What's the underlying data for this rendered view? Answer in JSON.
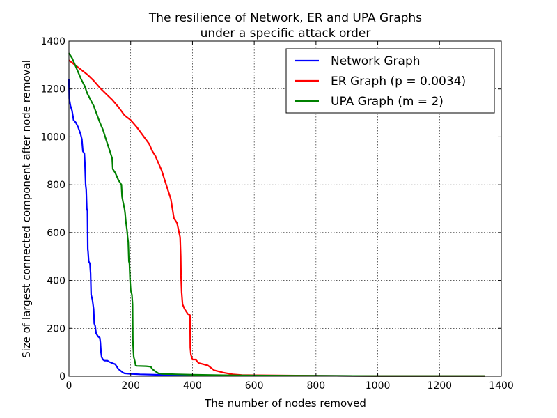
{
  "chart_data": {
    "type": "line",
    "title": "The resilience of Network, ER and UPA Graphs",
    "subtitle": "under a specific attack order",
    "xlabel": "The number of nodes removed",
    "ylabel": "Size of largest connected component after node removal",
    "xlim": [
      0,
      1400
    ],
    "ylim": [
      0,
      1400
    ],
    "x_ticks": [
      "0",
      "200",
      "400",
      "600",
      "800",
      "1000",
      "1200",
      "1400"
    ],
    "y_ticks": [
      "0",
      "200",
      "400",
      "600",
      "800",
      "1000",
      "1200",
      "1400"
    ],
    "grid": true,
    "legend_position": "top-right",
    "series": [
      {
        "name": "Network Graph",
        "color": "#0000ff",
        "points": [
          [
            0,
            1240
          ],
          [
            1,
            1160
          ],
          [
            5,
            1130
          ],
          [
            10,
            1110
          ],
          [
            15,
            1070
          ],
          [
            22,
            1060
          ],
          [
            30,
            1040
          ],
          [
            38,
            1010
          ],
          [
            42,
            990
          ],
          [
            45,
            940
          ],
          [
            50,
            930
          ],
          [
            52,
            880
          ],
          [
            54,
            800
          ],
          [
            56,
            780
          ],
          [
            58,
            700
          ],
          [
            60,
            690
          ],
          [
            61,
            530
          ],
          [
            62,
            520
          ],
          [
            64,
            480
          ],
          [
            68,
            470
          ],
          [
            70,
            430
          ],
          [
            72,
            340
          ],
          [
            74,
            330
          ],
          [
            76,
            320
          ],
          [
            78,
            300
          ],
          [
            80,
            280
          ],
          [
            82,
            220
          ],
          [
            85,
            210
          ],
          [
            88,
            180
          ],
          [
            90,
            175
          ],
          [
            95,
            165
          ],
          [
            100,
            160
          ],
          [
            102,
            140
          ],
          [
            104,
            100
          ],
          [
            106,
            80
          ],
          [
            110,
            70
          ],
          [
            115,
            65
          ],
          [
            125,
            65
          ],
          [
            130,
            60
          ],
          [
            140,
            55
          ],
          [
            150,
            50
          ],
          [
            155,
            40
          ],
          [
            160,
            30
          ],
          [
            165,
            25
          ],
          [
            170,
            20
          ],
          [
            175,
            15
          ],
          [
            180,
            12
          ],
          [
            200,
            10
          ],
          [
            230,
            8
          ],
          [
            280,
            6
          ],
          [
            350,
            4
          ],
          [
            450,
            3
          ],
          [
            600,
            2
          ],
          [
            800,
            2
          ],
          [
            1000,
            1
          ],
          [
            1200,
            1
          ],
          [
            1346,
            1
          ]
        ]
      },
      {
        "name": "ER Graph (p = 0.0034)",
        "color": "#ff0000",
        "points": [
          [
            0,
            1320
          ],
          [
            20,
            1300
          ],
          [
            40,
            1280
          ],
          [
            60,
            1260
          ],
          [
            80,
            1235
          ],
          [
            100,
            1205
          ],
          [
            120,
            1180
          ],
          [
            140,
            1155
          ],
          [
            160,
            1125
          ],
          [
            180,
            1090
          ],
          [
            200,
            1070
          ],
          [
            220,
            1040
          ],
          [
            240,
            1005
          ],
          [
            260,
            970
          ],
          [
            270,
            940
          ],
          [
            280,
            920
          ],
          [
            290,
            890
          ],
          [
            300,
            860
          ],
          [
            310,
            820
          ],
          [
            320,
            780
          ],
          [
            330,
            740
          ],
          [
            335,
            700
          ],
          [
            340,
            660
          ],
          [
            350,
            640
          ],
          [
            355,
            610
          ],
          [
            360,
            580
          ],
          [
            362,
            500
          ],
          [
            363,
            420
          ],
          [
            365,
            350
          ],
          [
            368,
            300
          ],
          [
            375,
            280
          ],
          [
            385,
            260
          ],
          [
            392,
            255
          ],
          [
            393,
            120
          ],
          [
            395,
            90
          ],
          [
            400,
            70
          ],
          [
            410,
            70
          ],
          [
            420,
            55
          ],
          [
            450,
            45
          ],
          [
            470,
            25
          ],
          [
            500,
            15
          ],
          [
            530,
            8
          ],
          [
            560,
            5
          ],
          [
            600,
            4
          ],
          [
            800,
            2
          ],
          [
            1000,
            1
          ],
          [
            1200,
            1
          ],
          [
            1346,
            1
          ]
        ]
      },
      {
        "name": "UPA Graph (m = 2)",
        "color": "#008000",
        "points": [
          [
            0,
            1350
          ],
          [
            10,
            1330
          ],
          [
            20,
            1300
          ],
          [
            30,
            1270
          ],
          [
            40,
            1240
          ],
          [
            50,
            1215
          ],
          [
            60,
            1180
          ],
          [
            70,
            1155
          ],
          [
            80,
            1130
          ],
          [
            90,
            1095
          ],
          [
            100,
            1060
          ],
          [
            110,
            1030
          ],
          [
            120,
            990
          ],
          [
            130,
            950
          ],
          [
            140,
            910
          ],
          [
            142,
            865
          ],
          [
            150,
            850
          ],
          [
            160,
            820
          ],
          [
            170,
            800
          ],
          [
            172,
            750
          ],
          [
            175,
            730
          ],
          [
            180,
            700
          ],
          [
            182,
            680
          ],
          [
            184,
            650
          ],
          [
            186,
            630
          ],
          [
            188,
            610
          ],
          [
            190,
            580
          ],
          [
            192,
            560
          ],
          [
            194,
            480
          ],
          [
            196,
            470
          ],
          [
            198,
            400
          ],
          [
            200,
            360
          ],
          [
            202,
            350
          ],
          [
            204,
            340
          ],
          [
            206,
            300
          ],
          [
            207,
            150
          ],
          [
            208,
            120
          ],
          [
            210,
            80
          ],
          [
            212,
            70
          ],
          [
            214,
            60
          ],
          [
            216,
            45
          ],
          [
            220,
            43
          ],
          [
            250,
            42
          ],
          [
            265,
            40
          ],
          [
            270,
            30
          ],
          [
            280,
            20
          ],
          [
            290,
            12
          ],
          [
            300,
            10
          ],
          [
            350,
            8
          ],
          [
            400,
            6
          ],
          [
            500,
            4
          ],
          [
            600,
            3
          ],
          [
            800,
            2
          ],
          [
            1000,
            1
          ],
          [
            1200,
            1
          ],
          [
            1346,
            1
          ]
        ]
      }
    ]
  }
}
